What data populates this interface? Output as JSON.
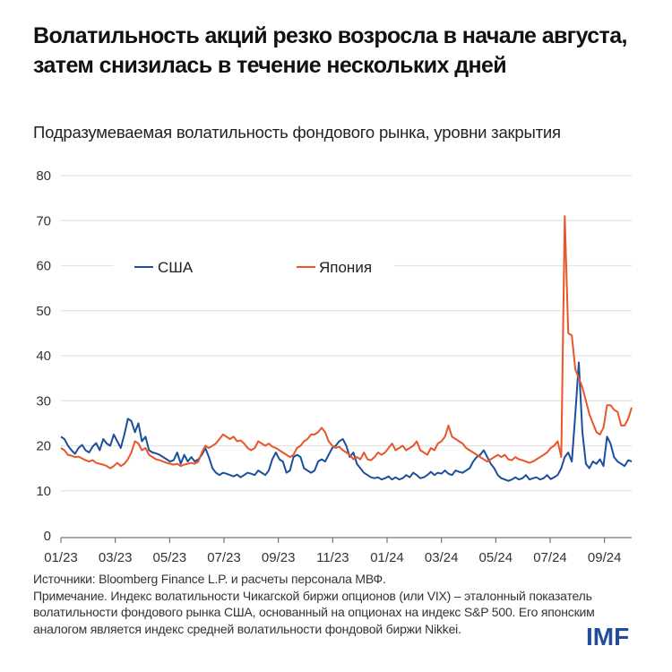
{
  "title": "Волатильность акций резко возросла в начале августа, затем снизилась в течение нескольких дней",
  "subtitle": "Подразумеваемая волатильность фондового рынка, уровни закрытия",
  "notes": {
    "source": "Источники: Bloomberg Finance L.P. и расчеты персонала МВФ.",
    "note_line1": "Примечание. Индекс волатильности Чикагской биржи опционов (или VIX) – эталонный показатель",
    "note_line2": "волатильности фондового рынка США, основанный на опционах на индекс S&P 500. Его японским",
    "note_line3": "аналогом является индекс средней волатильности фондовой биржи Nikkei."
  },
  "logo": "IMF",
  "chart_data": {
    "type": "line",
    "title": "Подразумеваемая волатильность фондового рынка, уровни закрытия",
    "xlabel": "",
    "ylabel": "",
    "ylim": [
      0,
      80
    ],
    "yticks": [
      0,
      10,
      20,
      30,
      40,
      50,
      60,
      70,
      80
    ],
    "xlim_months": [
      0,
      21.0
    ],
    "xticks": [
      {
        "m": 0,
        "label": "01/23"
      },
      {
        "m": 2,
        "label": "03/23"
      },
      {
        "m": 4,
        "label": "05/23"
      },
      {
        "m": 6,
        "label": "07/23"
      },
      {
        "m": 8,
        "label": "09/23"
      },
      {
        "m": 10,
        "label": "11/23"
      },
      {
        "m": 12,
        "label": "01/24"
      },
      {
        "m": 14,
        "label": "03/24"
      },
      {
        "m": 16,
        "label": "05/24"
      },
      {
        "m": 18,
        "label": "07/24"
      },
      {
        "m": 20,
        "label": "09/24"
      }
    ],
    "grid": true,
    "legend_position": "top-left",
    "x_step_months": 0.2,
    "series": [
      {
        "name": "США",
        "color": "#1c4f9c",
        "values": [
          22.0,
          21.5,
          20.0,
          19.0,
          18.2,
          19.5,
          20.2,
          19.0,
          18.5,
          19.8,
          20.6,
          19.0,
          21.5,
          20.5,
          20.0,
          22.5,
          21.0,
          19.5,
          22.5,
          26.0,
          25.5,
          23.0,
          25.0,
          21.0,
          22.0,
          19.0,
          18.5,
          18.3,
          18.0,
          17.5,
          17.0,
          16.5,
          16.8,
          18.5,
          16.0,
          18.0,
          16.5,
          17.5,
          16.5,
          17.0,
          18.0,
          19.5,
          17.5,
          15.0,
          14.0,
          13.5,
          14.0,
          13.8,
          13.5,
          13.2,
          13.6,
          13.0,
          13.5,
          14.0,
          13.8,
          13.5,
          14.5,
          14.0,
          13.5,
          14.5,
          17.0,
          18.5,
          17.0,
          16.5,
          14.0,
          14.5,
          17.5,
          18.0,
          17.5,
          15.0,
          14.5,
          14.0,
          14.5,
          16.5,
          17.0,
          16.5,
          18.0,
          19.5,
          20.0,
          21.0,
          21.5,
          20.0,
          17.5,
          18.5,
          16.0,
          15.0,
          14.0,
          13.5,
          13.0,
          12.8,
          13.0,
          12.5,
          12.8,
          13.2,
          12.5,
          13.0,
          12.5,
          12.8,
          13.5,
          13.0,
          14.0,
          13.5,
          12.8,
          13.0,
          13.5,
          14.2,
          13.5,
          14.0,
          13.8,
          14.5,
          13.8,
          13.5,
          14.5,
          14.2,
          14.0,
          14.5,
          15.0,
          16.5,
          17.5,
          18.0,
          19.0,
          17.5,
          16.0,
          15.0,
          13.5,
          12.8,
          12.5,
          12.2,
          12.5,
          13.0,
          12.5,
          12.8,
          13.5,
          12.5,
          12.8,
          13.0,
          12.5,
          12.8,
          13.5,
          12.6,
          13.0,
          13.5,
          15.0,
          17.5,
          18.5,
          16.5,
          27.0,
          38.5,
          23.0,
          16.0,
          15.0,
          16.5,
          16.0,
          17.0,
          15.5,
          22.0,
          20.5,
          17.5,
          16.5,
          16.0,
          15.5,
          16.8,
          16.5
        ]
      },
      {
        "name": "Япония",
        "color": "#e8562a",
        "values": [
          19.5,
          19.0,
          18.0,
          17.8,
          17.5,
          17.6,
          17.2,
          16.8,
          16.5,
          16.8,
          16.2,
          16.0,
          15.8,
          15.5,
          15.0,
          15.5,
          16.2,
          15.5,
          16.0,
          17.0,
          18.5,
          21.0,
          20.5,
          19.0,
          19.5,
          18.0,
          17.5,
          17.0,
          16.8,
          16.5,
          16.2,
          16.0,
          15.8,
          16.0,
          15.5,
          15.8,
          16.0,
          16.2,
          16.0,
          16.5,
          18.5,
          20.0,
          19.5,
          20.0,
          20.5,
          21.5,
          22.5,
          22.0,
          21.5,
          22.0,
          21.0,
          21.2,
          20.5,
          19.5,
          19.0,
          19.5,
          21.0,
          20.5,
          20.0,
          20.5,
          19.8,
          19.5,
          19.0,
          18.5,
          18.0,
          17.5,
          18.0,
          19.5,
          20.0,
          21.0,
          21.5,
          22.5,
          22.5,
          23.0,
          24.0,
          23.0,
          21.0,
          20.0,
          19.5,
          19.8,
          19.0,
          18.5,
          18.0,
          17.0,
          17.5,
          17.0,
          18.5,
          17.0,
          16.8,
          17.5,
          18.5,
          18.0,
          18.5,
          19.5,
          20.5,
          19.0,
          19.5,
          20.0,
          19.0,
          19.5,
          20.0,
          21.0,
          19.0,
          18.5,
          18.0,
          19.5,
          19.0,
          20.5,
          21.0,
          22.0,
          24.5,
          22.0,
          21.5,
          21.0,
          20.5,
          19.5,
          19.0,
          18.5,
          18.0,
          17.5,
          17.0,
          16.5,
          17.0,
          17.5,
          18.0,
          17.5,
          18.0,
          17.0,
          16.8,
          17.5,
          17.0,
          16.8,
          16.5,
          16.2,
          16.5,
          17.0,
          17.5,
          18.0,
          18.5,
          19.5,
          20.0,
          21.0,
          17.5,
          71.0,
          45.0,
          44.5,
          37.0,
          35.0,
          33.0,
          30.0,
          27.0,
          25.0,
          23.0,
          22.5,
          24.0,
          29.0,
          29.0,
          28.0,
          27.5,
          24.5,
          24.5,
          26.0,
          28.5
        ]
      }
    ]
  }
}
